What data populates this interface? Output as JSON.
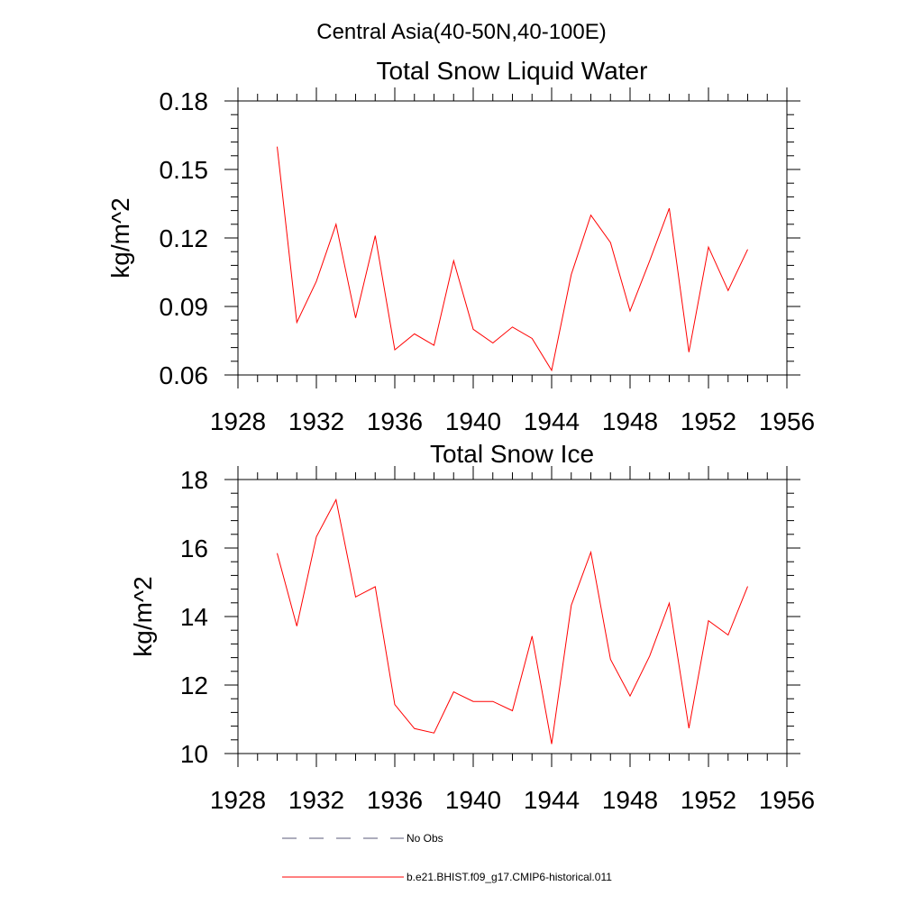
{
  "figure_title": "Central Asia(40-50N,40-100E)",
  "legend": [
    {
      "label": "No Obs",
      "color": "#5a5a7a",
      "dash": true
    },
    {
      "label": "b.e21.BHIST.f09_g17.CMIP6-historical.011",
      "color": "#ff0000",
      "dash": false
    }
  ],
  "chart_data": [
    {
      "type": "line",
      "title": "Total Snow Liquid Water",
      "ylabel": "kg/m^2",
      "xlabel": "",
      "xlim": [
        1928,
        1956
      ],
      "ylim": [
        0.06,
        0.18
      ],
      "x_ticks": [
        1928,
        1932,
        1936,
        1940,
        1944,
        1948,
        1952,
        1956
      ],
      "x_tick_labels": [
        "1928",
        "1932",
        "1936",
        "1940",
        "1944",
        "1948",
        "1952",
        "1956"
      ],
      "y_ticks": [
        0.06,
        0.09,
        0.12,
        0.15,
        0.18
      ],
      "y_tick_labels": [
        "0.06",
        "0.09",
        "0.12",
        "0.15",
        "0.18"
      ],
      "grid": false,
      "series": [
        {
          "color": "#ff0000",
          "x": [
            1930,
            1931,
            1932,
            1933,
            1934,
            1935,
            1936,
            1937,
            1938,
            1939,
            1940,
            1941,
            1942,
            1943,
            1944,
            1945,
            1946,
            1947,
            1948,
            1949,
            1950,
            1951,
            1952,
            1953,
            1954
          ],
          "values": [
            0.16,
            0.083,
            0.101,
            0.126,
            0.085,
            0.121,
            0.071,
            0.078,
            0.073,
            0.11,
            0.08,
            0.074,
            0.081,
            0.076,
            0.062,
            0.104,
            0.13,
            0.118,
            0.088,
            0.11,
            0.133,
            0.07,
            0.116,
            0.097,
            0.115
          ]
        }
      ]
    },
    {
      "type": "line",
      "title": "Total Snow Ice",
      "ylabel": "kg/m^2",
      "xlabel": "",
      "xlim": [
        1928,
        1956
      ],
      "ylim": [
        10,
        18
      ],
      "x_ticks": [
        1928,
        1932,
        1936,
        1940,
        1944,
        1948,
        1952,
        1956
      ],
      "x_tick_labels": [
        "1928",
        "1932",
        "1936",
        "1940",
        "1944",
        "1948",
        "1952",
        "1956"
      ],
      "y_ticks": [
        10,
        12,
        14,
        16,
        18
      ],
      "y_tick_labels": [
        "10",
        "12",
        "14",
        "16",
        "18"
      ],
      "grid": false,
      "series": [
        {
          "color": "#ff0000",
          "x": [
            1930,
            1931,
            1932,
            1933,
            1934,
            1935,
            1936,
            1937,
            1938,
            1939,
            1940,
            1941,
            1942,
            1943,
            1944,
            1945,
            1946,
            1947,
            1948,
            1949,
            1950,
            1951,
            1952,
            1953,
            1954
          ],
          "values": [
            15.85,
            13.72,
            16.33,
            17.41,
            14.57,
            14.87,
            11.43,
            10.73,
            10.6,
            11.8,
            11.52,
            11.52,
            11.25,
            13.43,
            10.28,
            14.33,
            15.88,
            12.75,
            11.68,
            12.85,
            14.39,
            10.74,
            13.88,
            13.46,
            14.88
          ]
        }
      ]
    }
  ]
}
